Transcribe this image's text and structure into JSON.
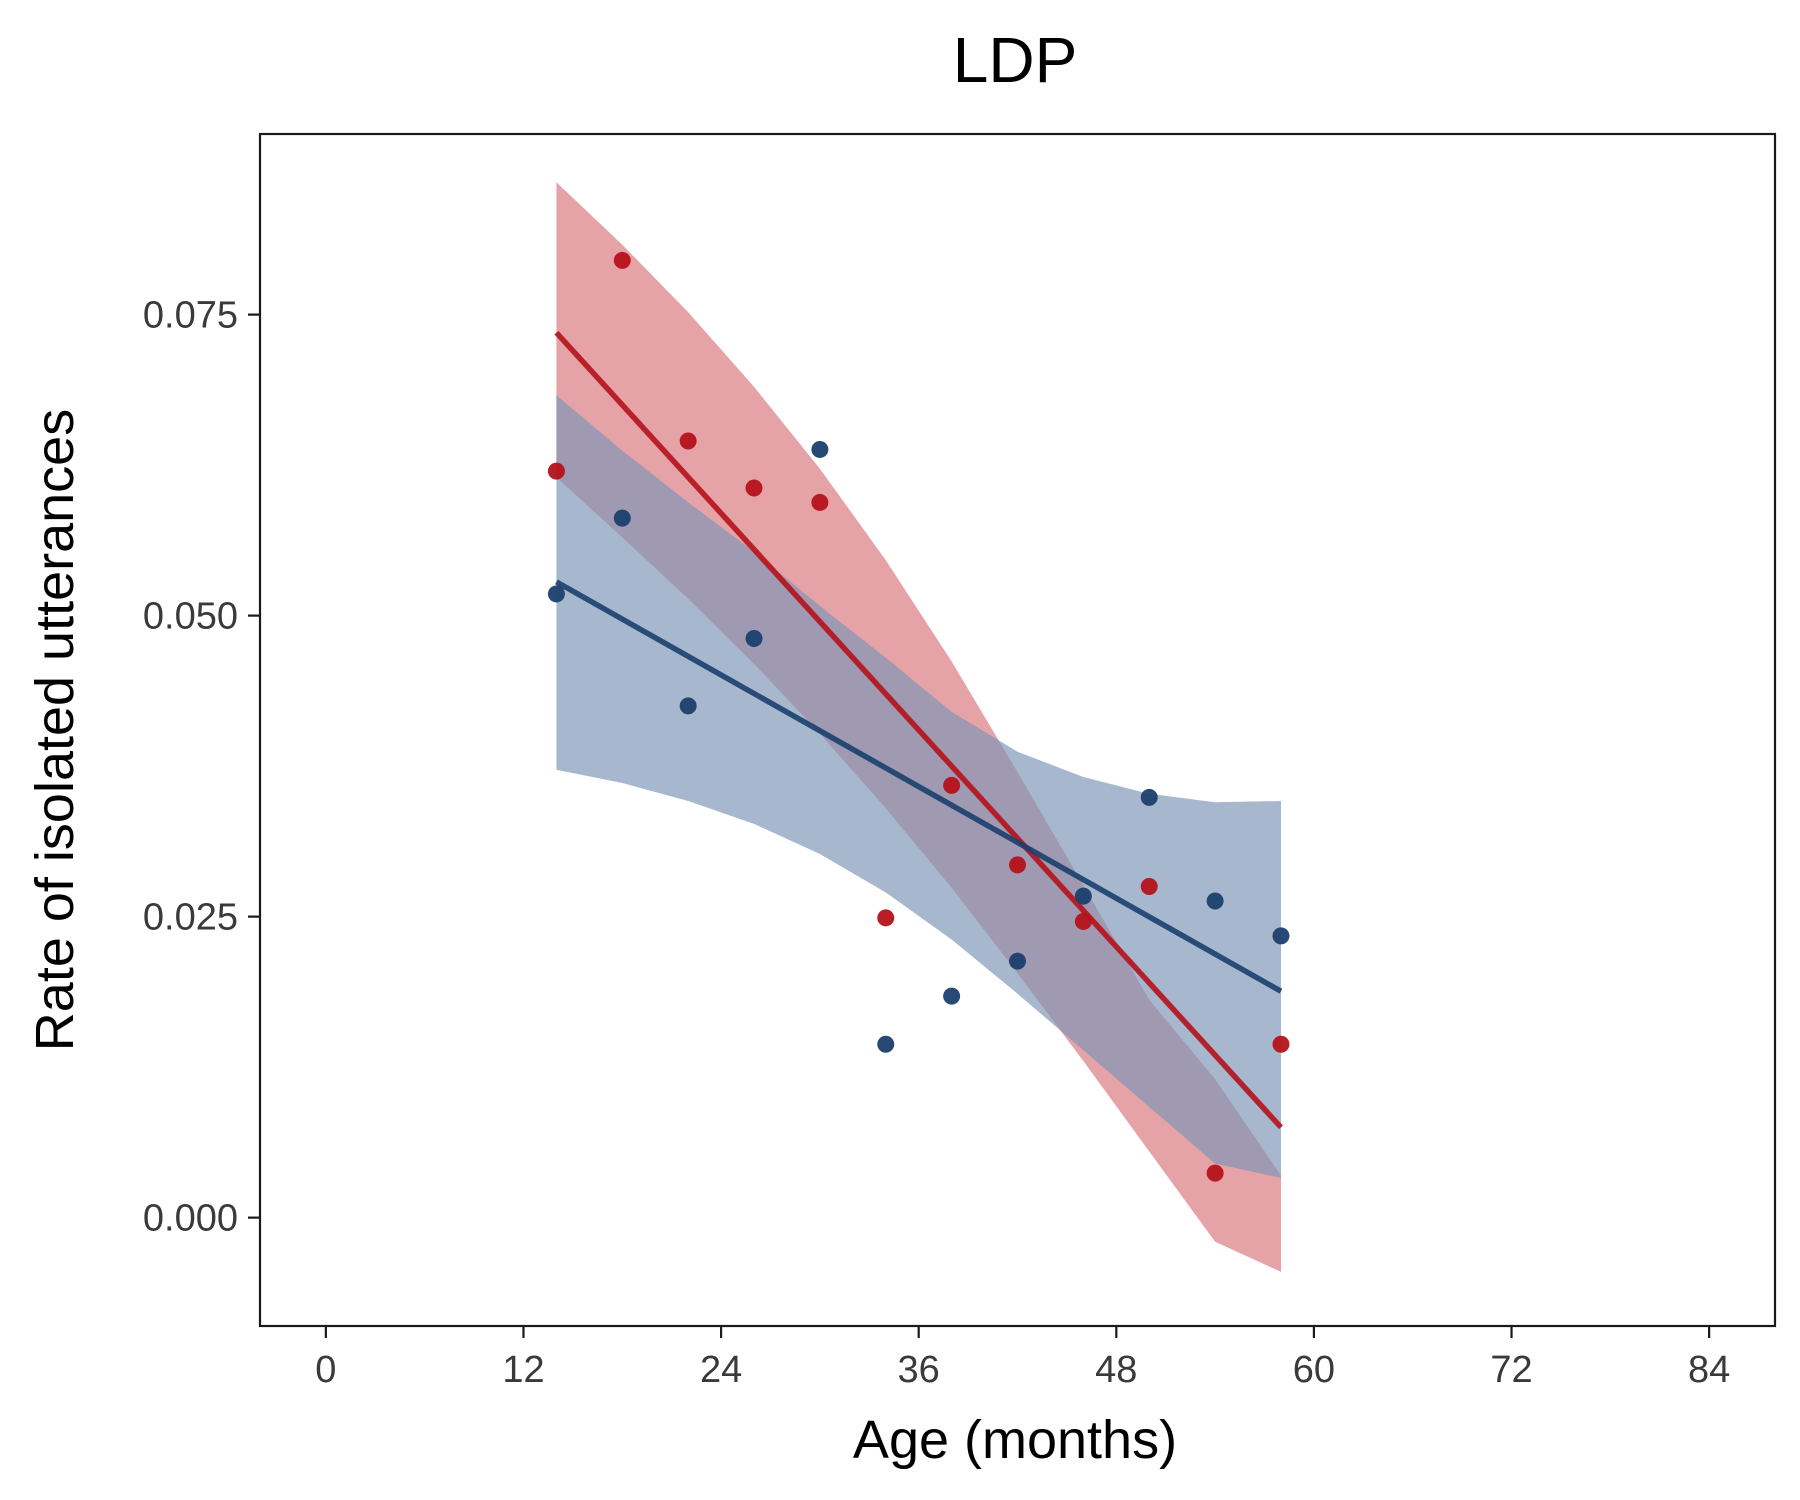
{
  "chart_data": {
    "type": "scatter",
    "title": "LDP",
    "xlabel": "Age (months)",
    "ylabel": "Rate of isolated utterances",
    "xlim": [
      -4,
      88
    ],
    "ylim": [
      -0.009,
      0.09
    ],
    "xticks": [
      0,
      12,
      24,
      36,
      48,
      60,
      72,
      84
    ],
    "xtick_labels": [
      "0",
      "12",
      "24",
      "36",
      "48",
      "60",
      "72",
      "84"
    ],
    "yticks": [
      0.0,
      0.025,
      0.05,
      0.075
    ],
    "ytick_labels": [
      "0.000",
      "0.025",
      "0.050",
      "0.075"
    ],
    "grid": false,
    "legend": "none",
    "series": [
      {
        "color": "#b5121b",
        "band_color": "#d9767e",
        "points": [
          {
            "x": 14,
            "y": 0.062
          },
          {
            "x": 18,
            "y": 0.0795
          },
          {
            "x": 22,
            "y": 0.0645
          },
          {
            "x": 26,
            "y": 0.0606
          },
          {
            "x": 30,
            "y": 0.0594
          },
          {
            "x": 34,
            "y": 0.0249
          },
          {
            "x": 38,
            "y": 0.0359
          },
          {
            "x": 42,
            "y": 0.0293
          },
          {
            "x": 46,
            "y": 0.0246
          },
          {
            "x": 50,
            "y": 0.0275
          },
          {
            "x": 54,
            "y": 0.0037
          },
          {
            "x": 58,
            "y": 0.0144
          }
        ],
        "fit": {
          "x": [
            14,
            58
          ],
          "y": [
            0.0735,
            0.0075
          ]
        },
        "band": {
          "x": [
            14,
            18,
            22,
            26,
            30,
            34,
            38,
            42,
            46,
            50,
            54,
            58
          ],
          "lower": [
            0.0615,
            0.0565,
            0.0514,
            0.046,
            0.0402,
            0.034,
            0.0274,
            0.0203,
            0.013,
            0.0055,
            -0.002,
            -0.0045
          ],
          "upper": [
            0.086,
            0.0808,
            0.0752,
            0.069,
            0.0622,
            0.0546,
            0.0462,
            0.037,
            0.0276,
            0.0181,
            0.0115,
            0.0035
          ]
        }
      },
      {
        "color": "#1b3f6e",
        "band_color": "#7d95b5",
        "points": [
          {
            "x": 14,
            "y": 0.0518
          },
          {
            "x": 18,
            "y": 0.0581
          },
          {
            "x": 22,
            "y": 0.0425
          },
          {
            "x": 26,
            "y": 0.0481
          },
          {
            "x": 30,
            "y": 0.0638
          },
          {
            "x": 34,
            "y": 0.0144
          },
          {
            "x": 38,
            "y": 0.0184
          },
          {
            "x": 42,
            "y": 0.0213
          },
          {
            "x": 46,
            "y": 0.0267
          },
          {
            "x": 50,
            "y": 0.0349
          },
          {
            "x": 54,
            "y": 0.0263
          },
          {
            "x": 58,
            "y": 0.0234
          }
        ],
        "fit": {
          "x": [
            14,
            58
          ],
          "y": [
            0.0528,
            0.0188
          ]
        },
        "band": {
          "x": [
            14,
            18,
            22,
            26,
            30,
            34,
            38,
            42,
            46,
            50,
            54,
            58
          ],
          "lower": [
            0.0372,
            0.0361,
            0.0346,
            0.0327,
            0.0302,
            0.027,
            0.0231,
            0.0186,
            0.0139,
            0.0092,
            0.0045,
            0.0033
          ],
          "upper": [
            0.0683,
            0.0637,
            0.0594,
            0.0553,
            0.0508,
            0.0465,
            0.042,
            0.0387,
            0.0366,
            0.0352,
            0.0345,
            0.0346
          ]
        }
      }
    ]
  }
}
